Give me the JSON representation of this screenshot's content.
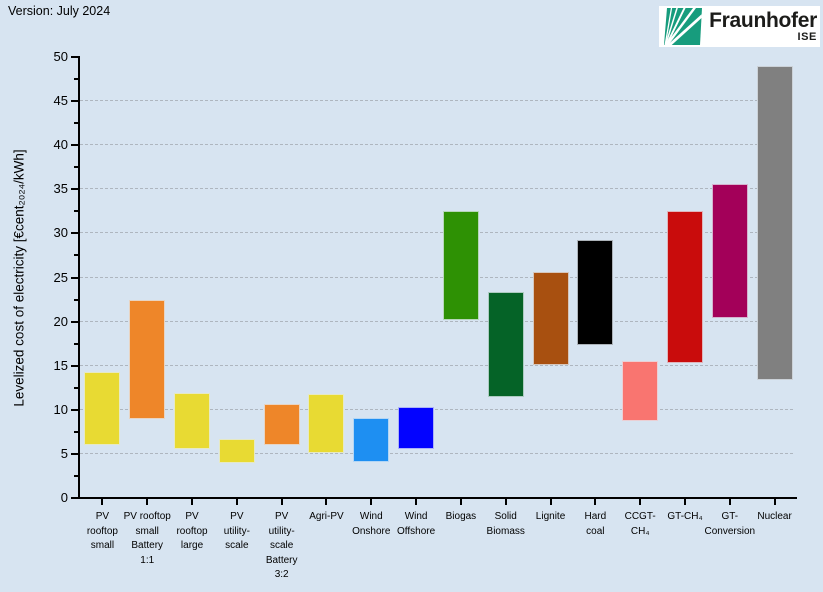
{
  "version_label": "Version: July 2024",
  "logo": {
    "brand": "Fraunhofer",
    "institute": "ISE",
    "emblem_color": "#179c7d",
    "text_color": "#1c1c1a",
    "background": "#ffffff"
  },
  "colors": {
    "page_background": "#d7e4f1",
    "axis": "#000000",
    "gridline": "#aeb6bf"
  },
  "chart_data": {
    "type": "bar",
    "subtype": "floating-range-bars",
    "title": "",
    "xlabel": "",
    "ylabel": "Levelized cost of electricity [€cent₂₀₂₄/kWh]",
    "ylim": [
      0,
      50
    ],
    "yticks": [
      0,
      5,
      10,
      15,
      20,
      25,
      30,
      35,
      40,
      45,
      50
    ],
    "ytick_minor_step": 2.5,
    "grid": "horizontal dashed lines at every 5, none at 50",
    "legend": "none",
    "bars": [
      {
        "label": "PV\nrooftop\nsmall",
        "min": 6.0,
        "max": 14.3,
        "color": "#e8da33"
      },
      {
        "label": "PV rooftop\nsmall\nBattery\n1:1",
        "min": 9.0,
        "max": 22.5,
        "color": "#ee8629"
      },
      {
        "label": "PV\nrooftop\nlarge",
        "min": 5.5,
        "max": 11.9,
        "color": "#e8da33"
      },
      {
        "label": "PV\nutility-\nscale",
        "min": 4.0,
        "max": 6.7,
        "color": "#e8da33"
      },
      {
        "label": "PV\nutility-\nscale\nBattery\n3:2",
        "min": 6.0,
        "max": 10.7,
        "color": "#ee8629"
      },
      {
        "label": "Agri-PV",
        "min": 5.1,
        "max": 11.8,
        "color": "#e8da33"
      },
      {
        "label": "Wind\nOnshore",
        "min": 4.1,
        "max": 9.1,
        "color": "#1e8ff2"
      },
      {
        "label": "Wind\nOffshore",
        "min": 5.5,
        "max": 10.3,
        "color": "#0303ff"
      },
      {
        "label": "Biogas",
        "min": 20.2,
        "max": 32.5,
        "color": "#2e9104"
      },
      {
        "label": "Solid\nBiomass",
        "min": 11.4,
        "max": 23.4,
        "color": "#056327"
      },
      {
        "label": "Lignite",
        "min": 15.1,
        "max": 25.6,
        "color": "#a85010"
      },
      {
        "label": "Hard\ncoal",
        "min": 17.4,
        "max": 29.2,
        "color": "#000000"
      },
      {
        "label": "CCGT-\nCH₄",
        "min": 8.7,
        "max": 15.5,
        "color": "#f97570"
      },
      {
        "label": "GT-CH₄",
        "min": 15.3,
        "max": 32.5,
        "color": "#c90c0c"
      },
      {
        "label": "GT-\nConversion",
        "min": 20.4,
        "max": 35.6,
        "color": "#a30059"
      },
      {
        "label": "Nuclear",
        "min": 13.4,
        "max": 49.0,
        "color": "#808080"
      }
    ]
  }
}
